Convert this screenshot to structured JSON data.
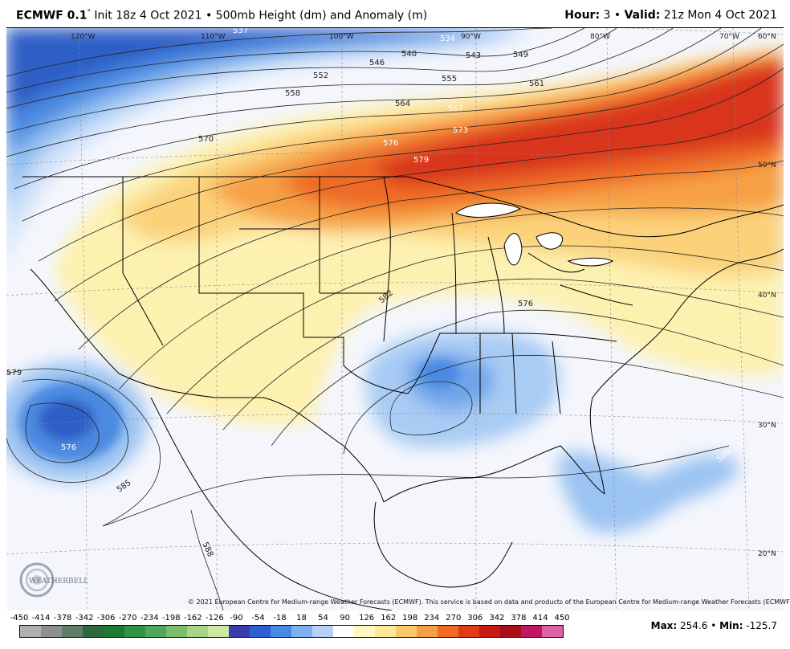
{
  "header": {
    "model": "ECMWF 0.1",
    "degree": "°",
    "init": " Init 18z 4 Oct 2021",
    "bullet": " • ",
    "product": "500mb Height (dm) and Anomaly (m)",
    "hour_label": "Hour:",
    "hour_value": " 3",
    "valid_label": "Valid:",
    "valid_value": " 21z Mon 4 Oct 2021"
  },
  "longitude_labels": [
    "120°W",
    "110°W",
    "100°W",
    "90°W",
    "80°W",
    "70°W"
  ],
  "latitude_labels": [
    "60°N",
    "50°N",
    "40°N",
    "30°N",
    "20°N"
  ],
  "contour_labels": [
    "537",
    "534",
    "540",
    "543",
    "546",
    "549",
    "552",
    "555",
    "558",
    "561",
    "564",
    "567",
    "570",
    "573",
    "576",
    "579",
    "582",
    "576",
    "579",
    "576",
    "585",
    "585",
    "588"
  ],
  "copyright": "© 2021 European Centre for Medium-range Weather Forecasts (ECMWF). This service is based on data and products of the European Centre for Medium-range Weather Forecasts (ECMWF).",
  "logo_text": "WEATHERBELL",
  "colorbar": {
    "ticks": [
      "-450",
      "-414",
      "-378",
      "-342",
      "-306",
      "-270",
      "-234",
      "-198",
      "-162",
      "-126",
      "-90",
      "-54",
      "-18",
      "18",
      "54",
      "90",
      "126",
      "162",
      "198",
      "234",
      "270",
      "306",
      "342",
      "378",
      "414",
      "450"
    ],
    "colors": [
      "#b0b0b0",
      "#8e8e8e",
      "#5e7e6a",
      "#2e6a40",
      "#1e7a35",
      "#2f9445",
      "#50a85a",
      "#7bbf6e",
      "#a7d487",
      "#cfe6a5",
      "#3b3bb0",
      "#2e5fd2",
      "#4a88e5",
      "#7fb0ef",
      "#b5d2f6",
      "#ffffff",
      "#fff6c0",
      "#fde89a",
      "#fbc96b",
      "#f7a043",
      "#f06a25",
      "#e03a18",
      "#c81a12",
      "#a81018",
      "#c01860",
      "#e060a8"
    ]
  },
  "maxmin": {
    "max_label": "Max:",
    "max_value": " 254.6",
    "sep": " • ",
    "min_label": "Min:",
    "min_value": " -125.7"
  }
}
